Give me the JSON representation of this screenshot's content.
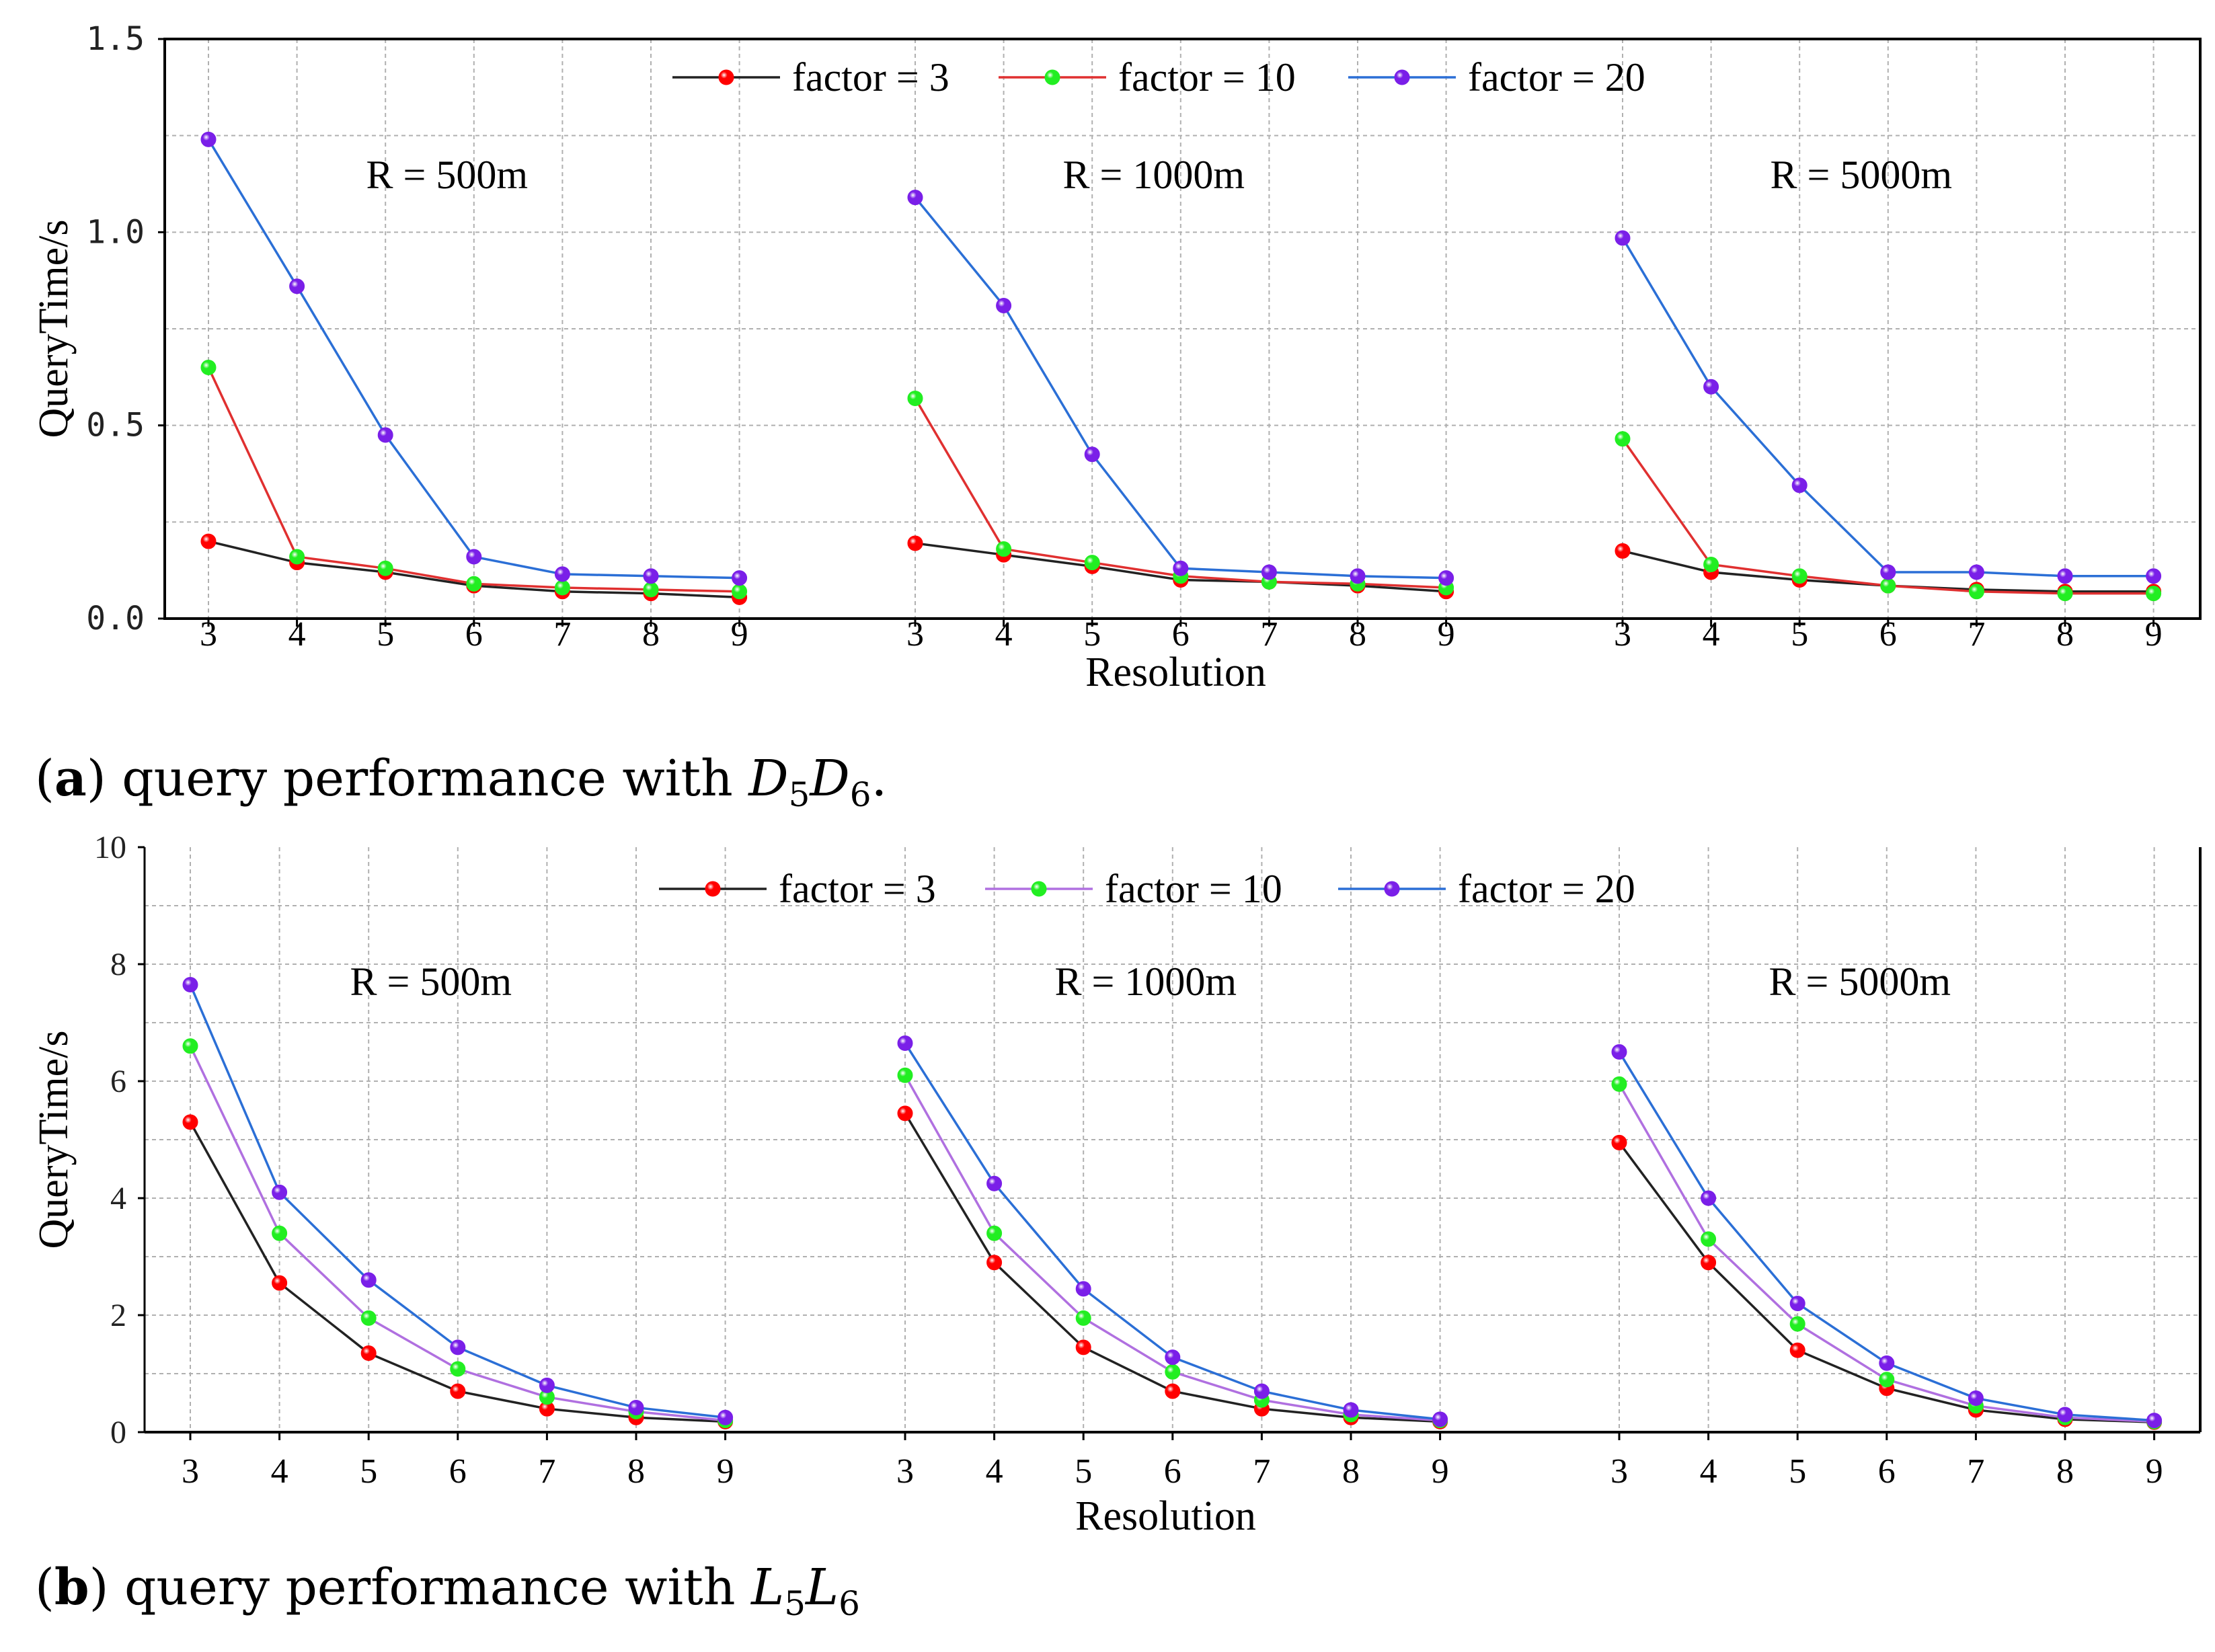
{
  "figure": {
    "caption_a": {
      "label": "a",
      "text": "query performance with",
      "math": [
        [
          "D",
          "5"
        ],
        [
          "D",
          "6"
        ]
      ],
      "suffix": "."
    },
    "caption_b": {
      "label": "b",
      "text": "query performance with",
      "math": [
        [
          "L",
          "5"
        ],
        [
          "L",
          "6"
        ]
      ],
      "suffix": ""
    }
  },
  "colors": {
    "markers": [
      "#ff0000",
      "#22ee22",
      "#7a1fe8"
    ],
    "axis": "#000000",
    "grid": "#b0b0b0"
  },
  "chart_data": [
    {
      "type": "line",
      "id": "a",
      "ylabel": "QueryTime/s",
      "xlabel": "Resolution",
      "ylim": [
        0,
        1.5
      ],
      "yticks": [
        "0.0",
        "0.5",
        "1.0",
        "1.5"
      ],
      "grid": true,
      "legend_position": "top-center",
      "legend": [
        "factor = 3",
        "factor = 10",
        "factor = 20"
      ],
      "line_colors": [
        "#222222",
        "#e03030",
        "#2b6fd6"
      ],
      "categories": [
        "3",
        "4",
        "5",
        "6",
        "7",
        "8",
        "9"
      ],
      "panels": [
        {
          "title": "R = 500m",
          "series": [
            {
              "name": "factor = 3",
              "values": [
                0.2,
                0.145,
                0.12,
                0.085,
                0.07,
                0.065,
                0.055
              ]
            },
            {
              "name": "factor = 10",
              "values": [
                0.65,
                0.16,
                0.13,
                0.09,
                0.08,
                0.075,
                0.07
              ]
            },
            {
              "name": "factor = 20",
              "values": [
                1.24,
                0.86,
                0.475,
                0.16,
                0.115,
                0.11,
                0.105
              ]
            }
          ]
        },
        {
          "title": "R = 1000m",
          "series": [
            {
              "name": "factor = 3",
              "values": [
                0.195,
                0.165,
                0.135,
                0.1,
                0.095,
                0.085,
                0.07
              ]
            },
            {
              "name": "factor = 10",
              "values": [
                0.57,
                0.18,
                0.145,
                0.11,
                0.095,
                0.09,
                0.08
              ]
            },
            {
              "name": "factor = 20",
              "values": [
                1.09,
                0.81,
                0.425,
                0.13,
                0.12,
                0.11,
                0.105
              ]
            }
          ]
        },
        {
          "title": "R = 5000m",
          "series": [
            {
              "name": "factor = 3",
              "values": [
                0.175,
                0.12,
                0.1,
                0.085,
                0.075,
                0.07,
                0.07
              ]
            },
            {
              "name": "factor = 10",
              "values": [
                0.465,
                0.14,
                0.11,
                0.085,
                0.07,
                0.065,
                0.065
              ]
            },
            {
              "name": "factor = 20",
              "values": [
                0.985,
                0.6,
                0.345,
                0.12,
                0.12,
                0.11,
                0.11
              ]
            }
          ]
        }
      ]
    },
    {
      "type": "line",
      "id": "b",
      "ylabel": "QueryTime/s",
      "xlabel": "Resolution",
      "ylim": [
        0,
        10
      ],
      "yticks": [
        "0",
        "2",
        "4",
        "6",
        "8",
        "10"
      ],
      "grid": true,
      "legend_position": "top-center",
      "legend": [
        "factor = 3",
        "factor = 10",
        "factor = 20"
      ],
      "line_colors": [
        "#222222",
        "#b070e0",
        "#2b6fd6"
      ],
      "categories": [
        "3",
        "4",
        "5",
        "6",
        "7",
        "8",
        "9"
      ],
      "panels": [
        {
          "title": "R = 500m",
          "series": [
            {
              "name": "factor = 3",
              "values": [
                5.3,
                2.55,
                1.35,
                0.7,
                0.4,
                0.25,
                0.18
              ]
            },
            {
              "name": "factor = 10",
              "values": [
                6.6,
                3.4,
                1.95,
                1.08,
                0.6,
                0.35,
                0.2
              ]
            },
            {
              "name": "factor = 20",
              "values": [
                7.65,
                4.1,
                2.6,
                1.45,
                0.8,
                0.42,
                0.25
              ]
            }
          ]
        },
        {
          "title": "R = 1000m",
          "series": [
            {
              "name": "factor = 3",
              "values": [
                5.45,
                2.9,
                1.45,
                0.7,
                0.4,
                0.25,
                0.18
              ]
            },
            {
              "name": "factor = 10",
              "values": [
                6.1,
                3.4,
                1.95,
                1.03,
                0.55,
                0.3,
                0.2
              ]
            },
            {
              "name": "factor = 20",
              "values": [
                6.65,
                4.25,
                2.45,
                1.28,
                0.7,
                0.38,
                0.22
              ]
            }
          ]
        },
        {
          "title": "R = 5000m",
          "series": [
            {
              "name": "factor = 3",
              "values": [
                4.95,
                2.9,
                1.4,
                0.75,
                0.38,
                0.22,
                0.17
              ]
            },
            {
              "name": "factor = 10",
              "values": [
                5.95,
                3.3,
                1.85,
                0.9,
                0.45,
                0.25,
                0.18
              ]
            },
            {
              "name": "factor = 20",
              "values": [
                6.5,
                4.0,
                2.2,
                1.18,
                0.58,
                0.3,
                0.2
              ]
            }
          ]
        }
      ]
    }
  ]
}
